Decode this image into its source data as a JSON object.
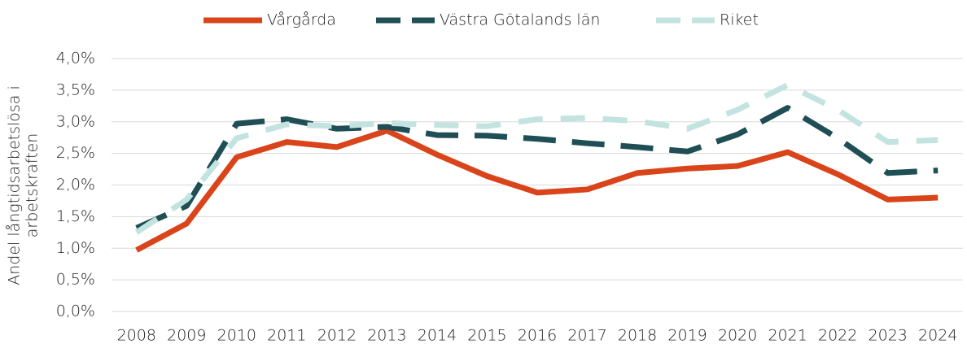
{
  "chart_data": {
    "type": "line",
    "ylabel": [
      "Andel långtidsarbetslösa i",
      "arbetskraften"
    ],
    "categories": [
      "2008",
      "2009",
      "2010",
      "2011",
      "2012",
      "2013",
      "2014",
      "2015",
      "2016",
      "2017",
      "2018",
      "2019",
      "2020",
      "2021",
      "2022",
      "2023",
      "2024"
    ],
    "series": [
      {
        "name": "Vårgårda",
        "color": "#d9441a",
        "dash": "solid",
        "values": [
          0.97,
          1.39,
          2.44,
          2.68,
          2.6,
          2.86,
          2.48,
          2.14,
          1.88,
          1.93,
          2.19,
          2.26,
          2.3,
          2.52,
          2.17,
          1.77,
          1.8
        ]
      },
      {
        "name": "Västra Götalands län",
        "color": "#1f4e55",
        "dash": "dashed",
        "values": [
          1.32,
          1.67,
          2.97,
          3.04,
          2.89,
          2.92,
          2.79,
          2.78,
          2.73,
          2.66,
          2.6,
          2.53,
          2.8,
          3.22,
          2.74,
          2.19,
          2.23
        ]
      },
      {
        "name": "Riket",
        "color": "#c3e3e0",
        "dash": "dashed",
        "values": [
          1.25,
          1.77,
          2.74,
          2.96,
          2.93,
          2.98,
          2.95,
          2.93,
          3.04,
          3.06,
          3.01,
          2.89,
          3.19,
          3.58,
          3.19,
          2.68,
          2.71
        ]
      }
    ],
    "ylim": [
      0,
      4
    ],
    "yticks": [
      {
        "value": 0,
        "label": "0,0%"
      },
      {
        "value": 0.5,
        "label": "0,5%"
      },
      {
        "value": 1,
        "label": "1,0%"
      },
      {
        "value": 1.5,
        "label": "1,5%"
      },
      {
        "value": 2,
        "label": "2,0%"
      },
      {
        "value": 2.5,
        "label": "2,5%"
      },
      {
        "value": 3,
        "label": "3,0%"
      },
      {
        "value": 3.5,
        "label": "3,5%"
      },
      {
        "value": 4,
        "label": "4,0%"
      }
    ],
    "grid": true,
    "legend": "top"
  }
}
